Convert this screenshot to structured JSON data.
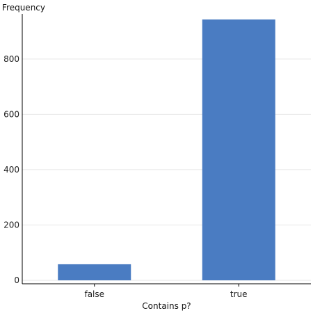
{
  "chart_data": {
    "type": "bar",
    "categories": [
      "false",
      "true"
    ],
    "values": [
      58,
      943
    ],
    "xlabel": "Contains p?",
    "ylabel": "Frequency",
    "ylim": [
      0,
      950
    ],
    "yticks": [
      0,
      200,
      400,
      600,
      800
    ],
    "grid": true,
    "legend": "none",
    "colors": {
      "bar": "#4a7cc2",
      "grid": "#e6e6e6",
      "axis": "#000000"
    }
  }
}
